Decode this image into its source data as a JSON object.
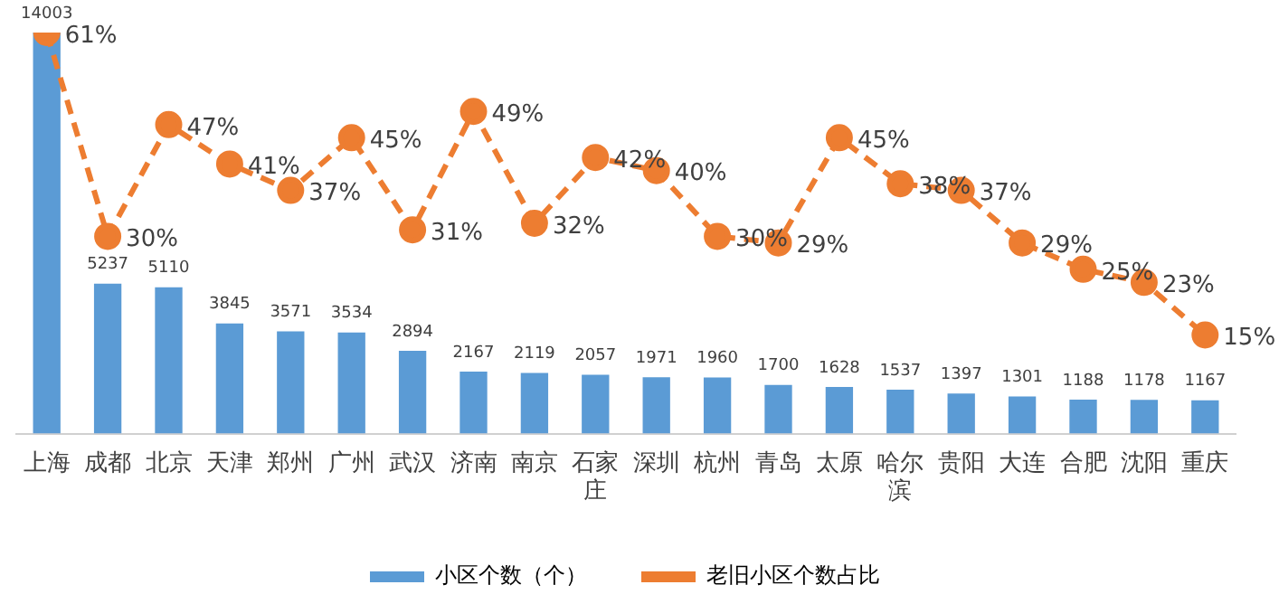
{
  "chart_data": {
    "type": "bar",
    "categories": [
      "上海",
      "成都",
      "北京",
      "天津",
      "郑州",
      "广州",
      "武汉",
      "济南",
      "南京",
      "石家庄",
      "深圳",
      "杭州",
      "青岛",
      "太原",
      "哈尔滨",
      "贵阳",
      "大连",
      "合肥",
      "沈阳",
      "重庆"
    ],
    "series": [
      {
        "name": "小区个数（个）",
        "color": "#5b9bd5",
        "values": [
          14003,
          5237,
          5110,
          3845,
          3571,
          3534,
          2894,
          2167,
          2119,
          2057,
          1971,
          1960,
          1700,
          1628,
          1537,
          1397,
          1301,
          1188,
          1178,
          1167
        ]
      },
      {
        "name": "老旧小区个数占比",
        "type": "line",
        "axis": "y2",
        "color": "#ed7d31",
        "marker": "circle",
        "line_style": "dashed",
        "values": [
          61,
          30,
          47,
          41,
          37,
          45,
          31,
          49,
          32,
          42,
          40,
          30,
          29,
          45,
          38,
          37,
          29,
          25,
          23,
          15
        ],
        "value_labels": [
          "61%",
          "30%",
          "47%",
          "41%",
          "37%",
          "45%",
          "31%",
          "49%",
          "32%",
          "42%",
          "40%",
          "30%",
          "29%",
          "45%",
          "38%",
          "37%",
          "29%",
          "25%",
          "23%",
          "15%"
        ]
      }
    ],
    "data_labels": true,
    "legend": "bottom",
    "grid": false,
    "tick_labels": "x"
  }
}
